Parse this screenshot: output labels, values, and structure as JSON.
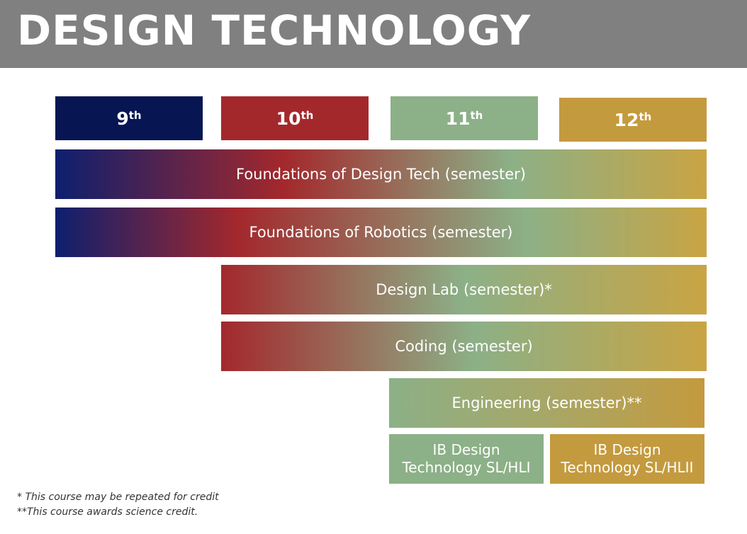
{
  "header": {
    "title": "DESIGN TECHNOLOGY"
  },
  "grades": [
    {
      "number": "9",
      "suffix": "th",
      "color": "#071652"
    },
    {
      "number": "10",
      "suffix": "th",
      "color": "#a3282c"
    },
    {
      "number": "11",
      "suffix": "th",
      "color": "#8cb087"
    },
    {
      "number": "12",
      "suffix": "th",
      "color": "#c49a3e"
    }
  ],
  "courses": [
    {
      "label": "Foundations of Design Tech (semester)"
    },
    {
      "label": "Foundations of Robotics (semester)"
    },
    {
      "label": "Design Lab (semester)*"
    },
    {
      "label": "Coding (semester)"
    },
    {
      "label": "Engineering (semester)**"
    }
  ],
  "ib_courses": [
    {
      "line1": "IB Design",
      "line2": "Technology SL/HLI"
    },
    {
      "line1": "IB Design",
      "line2": "Technology SL/HLII"
    }
  ],
  "footnotes": [
    "* This course may be repeated for credit",
    "**This course awards science credit."
  ]
}
